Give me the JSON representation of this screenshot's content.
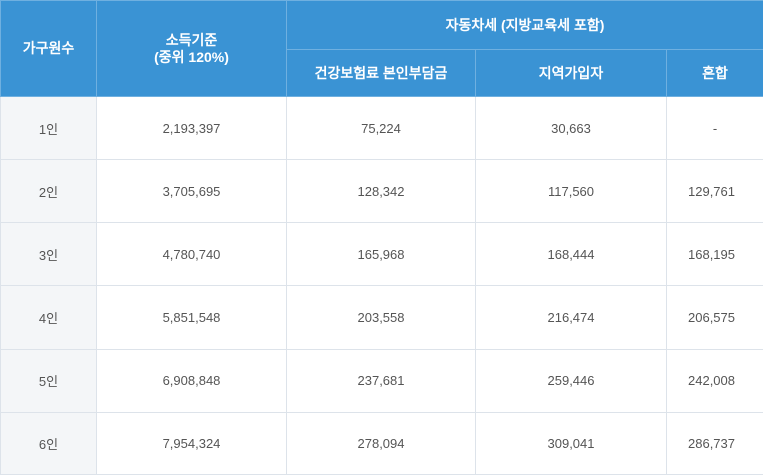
{
  "header": {
    "household_count": "가구원수",
    "income_basis_line1": "소득기준",
    "income_basis_line2": "(중위 120%)",
    "tax_group": "자동차세 (지방교육세 포함)",
    "health_insurance": "건강보험료 본인부담금",
    "regional_subscriber": "지역가입자",
    "mixed": "혼합"
  },
  "rows": [
    {
      "household": "1인",
      "income": "2,193,397",
      "health": "75,224",
      "regional": "30,663",
      "mixed": "-"
    },
    {
      "household": "2인",
      "income": "3,705,695",
      "health": "128,342",
      "regional": "117,560",
      "mixed": "129,761"
    },
    {
      "household": "3인",
      "income": "4,780,740",
      "health": "165,968",
      "regional": "168,444",
      "mixed": "168,195"
    },
    {
      "household": "4인",
      "income": "5,851,548",
      "health": "203,558",
      "regional": "216,474",
      "mixed": "206,575"
    },
    {
      "household": "5인",
      "income": "6,908,848",
      "health": "237,681",
      "regional": "259,446",
      "mixed": "242,008"
    },
    {
      "household": "6인",
      "income": "7,954,324",
      "health": "278,094",
      "regional": "309,041",
      "mixed": "286,737"
    }
  ]
}
